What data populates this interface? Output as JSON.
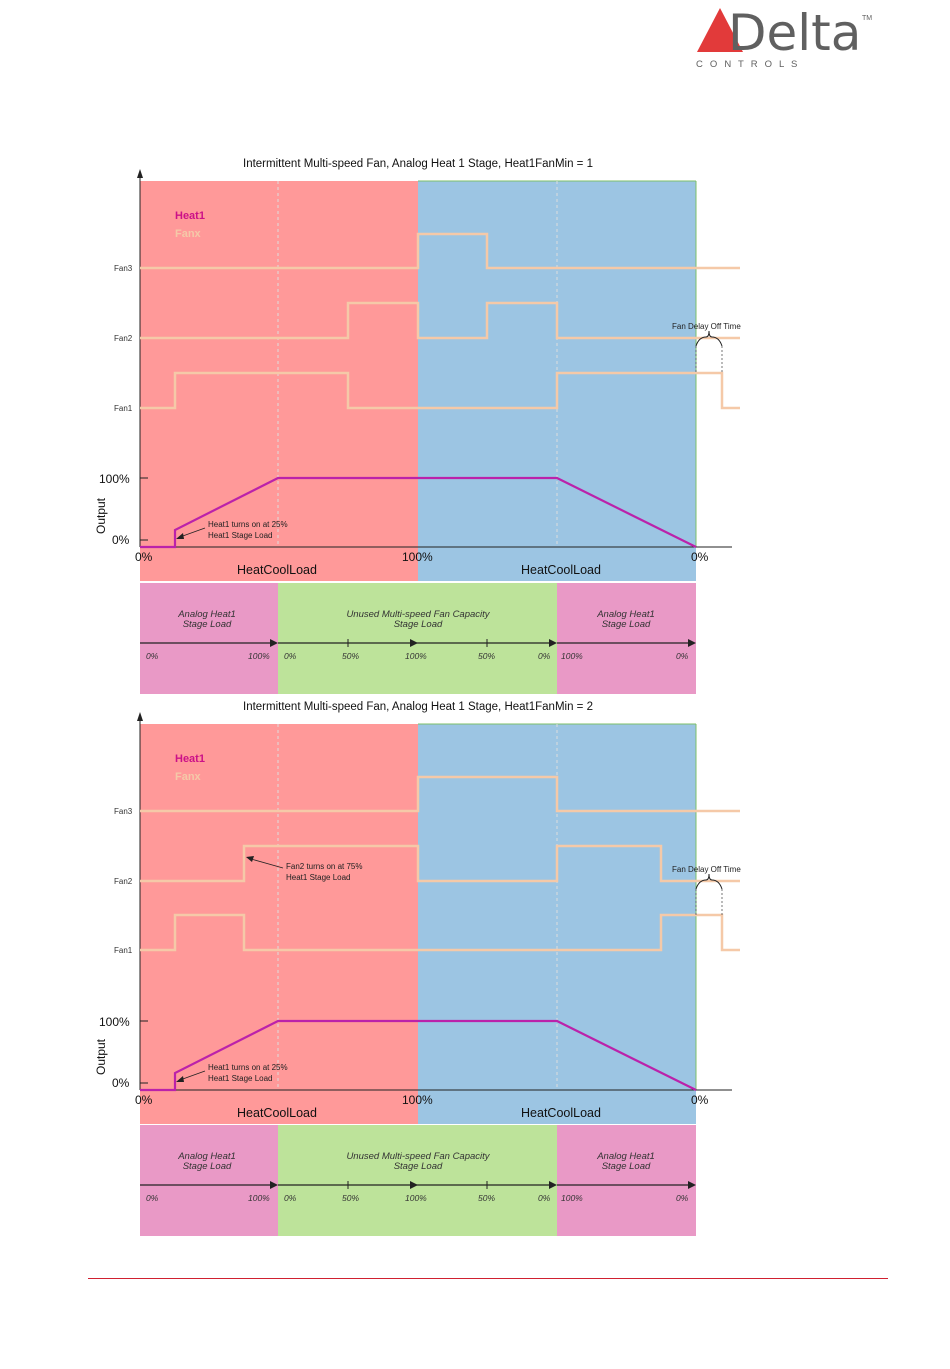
{
  "brand": {
    "word": "Delta",
    "tagline": "C O N T R O L S",
    "tm": "TM"
  },
  "colors": {
    "heat_zone": "#ff9999",
    "cool_zone": "#9cc5e3",
    "stage_heat": "#e999c6",
    "stage_unused": "#bde39a",
    "heat_line": "#bb22aa",
    "fan_line": "#f5c9a8",
    "heat_label": "#cc1188",
    "logo_red": "#e23a3a",
    "rule": "#d02030"
  },
  "diagrams": [
    {
      "title": "Intermittent Multi-speed Fan, Analog Heat 1 Stage, Heat1FanMin = 1",
      "legend": {
        "heat": "Heat1",
        "fan": "Fanx"
      },
      "fan_labels": [
        "Fan3",
        "Fan2",
        "Fan1"
      ],
      "y_axis_label": "Output",
      "y_ticks": [
        "100%",
        "0%"
      ],
      "x_ticks": [
        "0%",
        "100%",
        "0%"
      ],
      "x_labels": [
        "HeatCoolLoad",
        "HeatCoolLoad"
      ],
      "annotation_heat": [
        "Heat1 turns on at 25%",
        "Heat1 Stage Load"
      ],
      "annotation_fan": [],
      "fan_delay_label": "Fan Delay Off Time",
      "stage_boxes": [
        [
          "Analog Heat1",
          "Stage Load"
        ],
        [
          "Unused Multi-speed Fan Capacity",
          "Stage Load"
        ],
        [
          "Analog Heat1",
          "Stage Load"
        ]
      ],
      "stage_ticks": [
        "0%",
        "100%",
        "0%",
        "50%",
        "100%",
        "50%",
        "0%",
        "100%",
        "0%"
      ]
    },
    {
      "title": "Intermittent Multi-speed Fan, Analog Heat 1 Stage, Heat1FanMin = 2",
      "legend": {
        "heat": "Heat1",
        "fan": "Fanx"
      },
      "fan_labels": [
        "Fan3",
        "Fan2",
        "Fan1"
      ],
      "y_axis_label": "Output",
      "y_ticks": [
        "100%",
        "0%"
      ],
      "x_ticks": [
        "0%",
        "100%",
        "0%"
      ],
      "x_labels": [
        "HeatCoolLoad",
        "HeatCoolLoad"
      ],
      "annotation_heat": [
        "Heat1 turns on at 25%",
        "Heat1 Stage Load"
      ],
      "annotation_fan": [
        "Fan2 turns on at 75%",
        "Heat1 Stage Load"
      ],
      "fan_delay_label": "Fan Delay Off Time",
      "stage_boxes": [
        [
          "Analog Heat1",
          "Stage Load"
        ],
        [
          "Unused Multi-speed Fan Capacity",
          "Stage Load"
        ],
        [
          "Analog Heat1",
          "Stage Load"
        ]
      ],
      "stage_ticks": [
        "0%",
        "100%",
        "0%",
        "50%",
        "100%",
        "50%",
        "0%",
        "100%",
        "0%"
      ]
    }
  ]
}
